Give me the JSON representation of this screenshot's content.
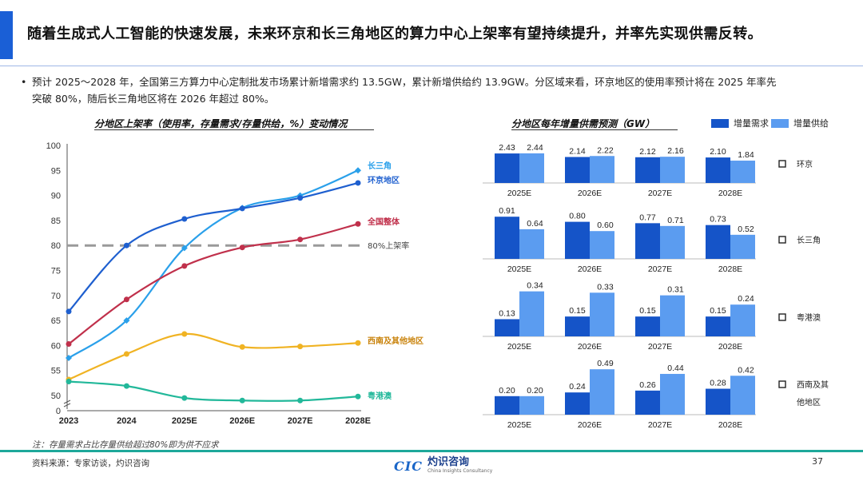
{
  "title": "随着生成式人工智能的快速发展，未来环京和长三角地区的算力中心上架率有望持续提升，并率先实现供需反转。",
  "bullet": {
    "line1": "预计 2025～2028 年，全国第三方算力中心定制批发市场累计新增需求约 13.5GW，累计新增供给约 13.9GW。分区域来看，环京地区的使用率预计将在 2025 年率先",
    "line2": "突破 80%，随后长三角地区将在 2026 年超过 80%。"
  },
  "colors": {
    "accent": "#1a5fd6",
    "demand": "#1554c8",
    "supply": "#5b9cf0"
  },
  "chart_data": [
    {
      "type": "line",
      "title": "分地区上架率（使用率，存量需求/存量供给，%）变动情况",
      "x": [
        "2023",
        "2024",
        "2025E",
        "2026E",
        "2027E",
        "2028E"
      ],
      "ylim": [
        50,
        100
      ],
      "yticks": [
        "50",
        "55",
        "60",
        "65",
        "70",
        "75",
        "80",
        "85",
        "90",
        "95",
        "100"
      ],
      "y_zero_label": "0",
      "series": [
        {
          "name": "长三角",
          "color": "#2aa0ea",
          "values": [
            57.5,
            65,
            79.5,
            87.5,
            90,
            95
          ]
        },
        {
          "name": "环京地区",
          "color": "#1e5fcf",
          "values": [
            66.8,
            80,
            85.3,
            87.4,
            89.5,
            92.5
          ]
        },
        {
          "name": "全国整体",
          "color": "#c0304b",
          "values": [
            60.3,
            69.2,
            75.9,
            79.6,
            81.2,
            84.3
          ]
        },
        {
          "name": "西南及其他地区",
          "color": "#f0b323",
          "values": [
            53.2,
            58.3,
            62.3,
            59.7,
            59.8,
            60.5
          ]
        },
        {
          "name": "粤港澳",
          "color": "#22b89a",
          "values": [
            52.8,
            51.9,
            49.5,
            49,
            49,
            49.8
          ]
        }
      ],
      "reference_line": {
        "value": 80,
        "label": "80%上架率"
      }
    },
    {
      "type": "bar",
      "title": "分地区每年增量供需预测（GW）",
      "legend": [
        "增量需求",
        "增量供给"
      ],
      "categories": [
        "2025E",
        "2026E",
        "2027E",
        "2028E"
      ],
      "regions": [
        {
          "name": "环京",
          "demand": [
            2.43,
            2.14,
            2.12,
            2.1
          ],
          "supply": [
            2.44,
            2.22,
            2.16,
            1.84
          ],
          "labels_d": [
            "2.43",
            "2.14",
            "2.12",
            "2.10"
          ],
          "labels_s": [
            "2.44",
            "2.22",
            "2.16",
            "1.84"
          ]
        },
        {
          "name": "长三角",
          "demand": [
            0.91,
            0.8,
            0.77,
            0.73
          ],
          "supply": [
            0.64,
            0.6,
            0.71,
            0.52
          ],
          "labels_d": [
            "0.91",
            "0.80",
            "0.77",
            "0.73"
          ],
          "labels_s": [
            "0.64",
            "0.60",
            "0.71",
            "0.52"
          ]
        },
        {
          "name": "粤港澳",
          "demand": [
            0.13,
            0.15,
            0.15,
            0.15
          ],
          "supply": [
            0.34,
            0.33,
            0.31,
            0.24
          ],
          "labels_d": [
            "0.13",
            "0.15",
            "0.15",
            "0.15"
          ],
          "labels_s": [
            "0.34",
            "0.33",
            "0.31",
            "0.24"
          ]
        },
        {
          "name": "西南及其他地区",
          "name_lines": [
            "西南及其",
            "他地区"
          ],
          "demand": [
            0.2,
            0.24,
            0.26,
            0.28
          ],
          "supply": [
            0.2,
            0.49,
            0.44,
            0.42
          ],
          "labels_d": [
            "0.20",
            "0.24",
            "0.26",
            "0.28"
          ],
          "labels_s": [
            "0.20",
            "0.49",
            "0.44",
            "0.42"
          ]
        }
      ]
    }
  ],
  "footer": {
    "note": "注：存量需求占比存量供给超过80%即为供不应求",
    "source": "资料来源：专家访谈，灼识咨询",
    "page": "37",
    "logo_cic": "CIC",
    "logo_cn": "灼识咨询",
    "logo_en": "China Insights Consultancy"
  }
}
